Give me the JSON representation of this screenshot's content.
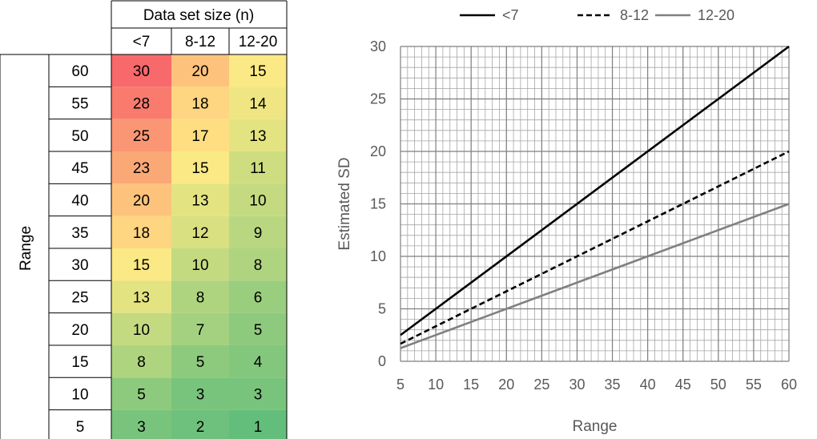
{
  "chart_data": [
    {
      "type": "table",
      "header": "Data set size (n)",
      "row_header": "Range",
      "columns": [
        "<7",
        "8-12",
        "12-20"
      ],
      "rows": [
        {
          "range": "60",
          "values": [
            "30",
            "20",
            "15"
          ]
        },
        {
          "range": "55",
          "values": [
            "28",
            "18",
            "14"
          ]
        },
        {
          "range": "50",
          "values": [
            "25",
            "17",
            "13"
          ]
        },
        {
          "range": "45",
          "values": [
            "23",
            "15",
            "11"
          ]
        },
        {
          "range": "40",
          "values": [
            "20",
            "13",
            "10"
          ]
        },
        {
          "range": "35",
          "values": [
            "18",
            "12",
            "9"
          ]
        },
        {
          "range": "30",
          "values": [
            "15",
            "10",
            "8"
          ]
        },
        {
          "range": "25",
          "values": [
            "13",
            "8",
            "6"
          ]
        },
        {
          "range": "20",
          "values": [
            "10",
            "7",
            "5"
          ]
        },
        {
          "range": "15",
          "values": [
            "8",
            "5",
            "4"
          ]
        },
        {
          "range": "10",
          "values": [
            "5",
            "3",
            "3"
          ]
        },
        {
          "range": "5",
          "values": [
            "3",
            "2",
            "1"
          ]
        }
      ],
      "color_scale": {
        "low": "#63be7b",
        "mid": "#ffeb84",
        "high": "#f8696b"
      }
    },
    {
      "type": "line",
      "xlabel": "Range",
      "ylabel": "Estimated SD",
      "xlim": [
        5,
        60
      ],
      "ylim": [
        0,
        30
      ],
      "x_ticks": [
        "5",
        "10",
        "15",
        "20",
        "25",
        "30",
        "35",
        "40",
        "45",
        "50",
        "55",
        "60"
      ],
      "y_ticks": [
        "0",
        "5",
        "10",
        "15",
        "20",
        "25",
        "30"
      ],
      "grid": true,
      "legend_position": "top",
      "series": [
        {
          "name": "<7",
          "color": "#000000",
          "style": "solid",
          "x": [
            5,
            60
          ],
          "y": [
            2.5,
            30
          ]
        },
        {
          "name": "8-12",
          "color": "#000000",
          "style": "dashed",
          "x": [
            5,
            60
          ],
          "y": [
            1.67,
            20
          ]
        },
        {
          "name": "12-20",
          "color": "#808080",
          "style": "solid",
          "x": [
            5,
            60
          ],
          "y": [
            1.25,
            15
          ]
        }
      ]
    }
  ]
}
